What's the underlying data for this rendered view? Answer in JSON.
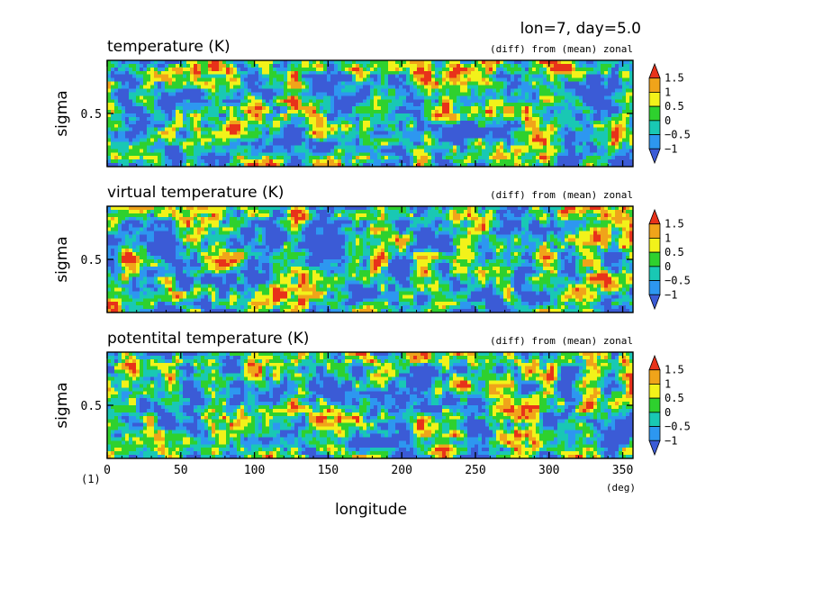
{
  "header": {
    "title": "lon=7, day=5.0"
  },
  "panels": [
    {
      "title": "temperature (K)",
      "subtitle": "(diff) from (mean) zonal",
      "ylabel": "sigma",
      "ytick": "0.5",
      "seed": 11
    },
    {
      "title": "virtual temperature (K)",
      "subtitle": "(diff) from (mean) zonal",
      "ylabel": "sigma",
      "ytick": "0.5",
      "seed": 23
    },
    {
      "title": "potentital temperature (K)",
      "subtitle": "(diff) from (mean) zonal",
      "ylabel": "sigma",
      "ytick": "0.5",
      "seed": 37
    }
  ],
  "xaxis": {
    "label": "longitude",
    "unit": "(deg)",
    "ticks": [
      "0",
      "50",
      "100",
      "150",
      "200",
      "250",
      "300",
      "350"
    ],
    "range": [
      0,
      357
    ]
  },
  "figure_label": "(1)",
  "colorbar": {
    "levels": [
      -1,
      -0.5,
      0,
      0.5,
      1,
      1.5
    ],
    "labels": [
      "1.5",
      "1",
      "0.5",
      "0",
      "−0.5",
      "−1"
    ],
    "colors": [
      "#3b5bd6",
      "#2d97f0",
      "#19c8b4",
      "#2ed12e",
      "#f2f21a",
      "#f0a41a",
      "#e8321a"
    ]
  },
  "chart_data": {
    "type": "heatmap",
    "title": "lon=7, day=5.0",
    "xlabel": "longitude (deg)",
    "ylabel": "sigma",
    "xlim": [
      0,
      357
    ],
    "ylim": [
      0,
      1
    ],
    "xticks": [
      0,
      50,
      100,
      150,
      200,
      250,
      300,
      350
    ],
    "yticks": [
      0.5
    ],
    "contour_levels": [
      -1,
      -0.5,
      0,
      0.5,
      1,
      1.5
    ],
    "panels": [
      "temperature (K)",
      "virtual temperature (K)",
      "potentital temperature (K)"
    ],
    "note": "(diff) from (mean) zonal"
  }
}
